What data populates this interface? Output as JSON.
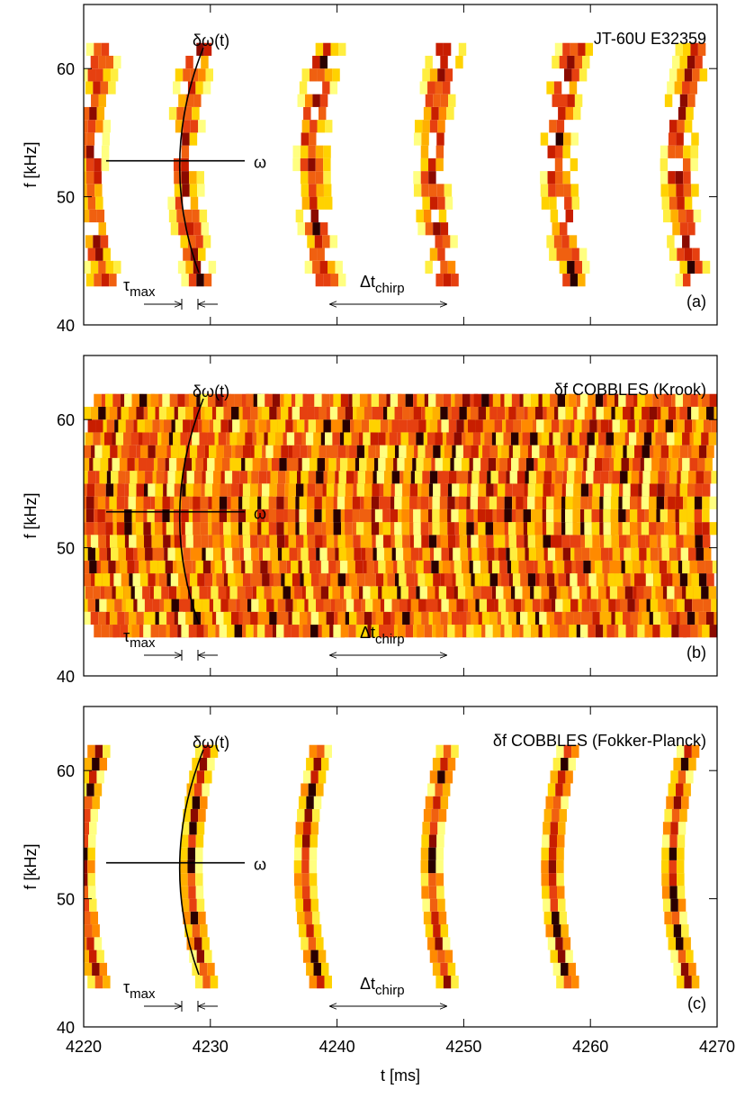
{
  "chart_data": [
    {
      "type": "spectrogram",
      "title": "JT-60U E32359",
      "panel_label": "(a)",
      "ylabel": "f [kHz]",
      "xlim": [
        4220,
        4270
      ],
      "xticks": [
        4220,
        4230,
        4240,
        4250,
        4260,
        4270
      ],
      "show_xtick_labels": false,
      "ylim": [
        40,
        65
      ],
      "yticks": [
        40,
        50,
        60
      ],
      "chirps": [
        4220.5,
        4228,
        4238,
        4247.5,
        4257.5,
        4267
      ],
      "annotations": {
        "delta_omega": "δω(t)",
        "omega": "ω",
        "tau": {
          "base": "τ",
          "sub": "max"
        },
        "dt": {
          "base": "Δt",
          "sub": "chirp"
        }
      }
    },
    {
      "type": "spectrogram",
      "title": "δf COBBLES (Krook)",
      "panel_label": "(b)",
      "ylabel": "f [kHz]",
      "xlim": [
        4220,
        4270
      ],
      "xticks": [
        4220,
        4230,
        4240,
        4250,
        4260,
        4270
      ],
      "show_xtick_labels": false,
      "ylim": [
        40,
        65
      ],
      "yticks": [
        40,
        50,
        60
      ],
      "chirps": [
        4220.5,
        4222,
        4223.5,
        4225,
        4226.5,
        4228,
        4229.5,
        4231,
        4232.5,
        4234,
        4235.5,
        4237,
        4238.5,
        4240,
        4241.5,
        4243,
        4244.5,
        4246,
        4247.5,
        4249,
        4250.5,
        4252,
        4253.5,
        4255,
        4256.5,
        4258,
        4259.5,
        4261,
        4262.5,
        4264,
        4265.5,
        4267,
        4268.5
      ],
      "annotations": {
        "delta_omega": "δω(t)",
        "omega": "ω",
        "tau": {
          "base": "τ",
          "sub": "max"
        },
        "dt": {
          "base": "Δt",
          "sub": "chirp"
        }
      }
    },
    {
      "type": "spectrogram",
      "title": "δf COBBLES (Fokker-Planck)",
      "panel_label": "(c)",
      "ylabel": "f [kHz]",
      "xlabel": "t [ms]",
      "xlim": [
        4220,
        4270
      ],
      "xticks": [
        4220,
        4230,
        4240,
        4250,
        4260,
        4270
      ],
      "show_xtick_labels": true,
      "ylim": [
        40,
        65
      ],
      "yticks": [
        40,
        50,
        60
      ],
      "chirps": [
        4220,
        4228.5,
        4237.5,
        4247.5,
        4257,
        4266.5
      ],
      "annotations": {
        "delta_omega": "δω(t)",
        "omega": "ω",
        "tau": {
          "base": "τ",
          "sub": "max"
        },
        "dt": {
          "base": "Δt",
          "sub": "chirp"
        }
      }
    }
  ]
}
